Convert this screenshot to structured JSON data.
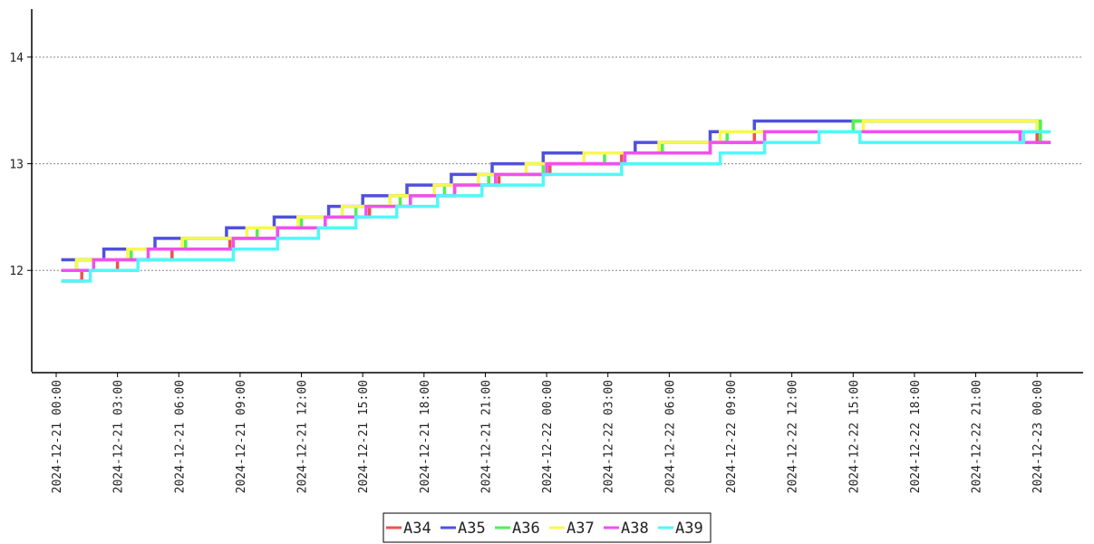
{
  "chart_data": {
    "type": "line",
    "step": true,
    "x_format": "YYYY-MM-DD HH:mm",
    "xlim": [
      "2024-12-21 00:00",
      "2024-12-23 01:30"
    ],
    "ylim": [
      11.05,
      14.45
    ],
    "yticks": [
      12,
      13,
      14
    ],
    "ytick_labels": [
      "12",
      "13",
      "14"
    ],
    "xtick_labels": [
      "2024-12-21 00:00",
      "2024-12-21 03:00",
      "2024-12-21 06:00",
      "2024-12-21 09:00",
      "2024-12-21 12:00",
      "2024-12-21 15:00",
      "2024-12-21 18:00",
      "2024-12-21 21:00",
      "2024-12-22 00:00",
      "2024-12-22 03:00",
      "2024-12-22 06:00",
      "2024-12-22 09:00",
      "2024-12-22 12:00",
      "2024-12-22 15:00",
      "2024-12-22 18:00",
      "2024-12-22 21:00",
      "2024-12-23 00:00"
    ],
    "grid": "horizontal-dotted",
    "legend_position": "bottom-center",
    "series": [
      {
        "name": "A34",
        "color": "#f05050",
        "x": [
          "2024-12-21 00:15",
          "2024-12-21 01:15",
          "2024-12-21 03:00",
          "2024-12-21 05:40",
          "2024-12-21 08:30",
          "2024-12-21 10:50",
          "2024-12-21 13:10",
          "2024-12-21 15:20",
          "2024-12-21 17:20",
          "2024-12-21 19:30",
          "2024-12-21 21:40",
          "2024-12-22 00:10",
          "2024-12-22 03:40",
          "2024-12-22 08:00",
          "2024-12-22 10:10",
          "2024-12-23 00:00",
          "2024-12-23 00:40"
        ],
        "y": [
          11.9,
          12.0,
          12.1,
          12.2,
          12.3,
          12.4,
          12.5,
          12.6,
          12.7,
          12.8,
          12.9,
          13.0,
          13.1,
          13.2,
          13.3,
          13.2,
          13.2
        ]
      },
      {
        "name": "A35",
        "color": "#5050dc",
        "x": [
          "2024-12-21 00:15",
          "2024-12-21 02:20",
          "2024-12-21 04:50",
          "2024-12-21 08:20",
          "2024-12-21 10:40",
          "2024-12-21 13:20",
          "2024-12-21 15:00",
          "2024-12-21 17:10",
          "2024-12-21 19:20",
          "2024-12-21 21:20",
          "2024-12-21 23:50",
          "2024-12-22 04:20",
          "2024-12-22 08:00",
          "2024-12-22 10:10",
          "2024-12-23 00:00",
          "2024-12-23 00:40"
        ],
        "y": [
          12.1,
          12.2,
          12.3,
          12.4,
          12.5,
          12.6,
          12.7,
          12.8,
          12.9,
          13.0,
          13.1,
          13.2,
          13.3,
          13.4,
          13.3,
          13.3
        ]
      },
      {
        "name": "A36",
        "color": "#50f050",
        "x": [
          "2024-12-21 00:15",
          "2024-12-21 01:00",
          "2024-12-21 03:40",
          "2024-12-21 06:20",
          "2024-12-21 09:50",
          "2024-12-21 12:00",
          "2024-12-21 14:40",
          "2024-12-21 16:50",
          "2024-12-21 19:00",
          "2024-12-21 21:10",
          "2024-12-21 23:50",
          "2024-12-22 02:50",
          "2024-12-22 05:40",
          "2024-12-22 08:50",
          "2024-12-22 15:00",
          "2024-12-23 00:10",
          "2024-12-23 00:40"
        ],
        "y": [
          12.0,
          12.1,
          12.2,
          12.3,
          12.4,
          12.5,
          12.6,
          12.7,
          12.8,
          12.9,
          13.0,
          13.1,
          13.2,
          13.3,
          13.4,
          13.2,
          13.2
        ]
      },
      {
        "name": "A37",
        "color": "#f8f850",
        "x": [
          "2024-12-21 00:15",
          "2024-12-21 01:00",
          "2024-12-21 03:30",
          "2024-12-21 06:10",
          "2024-12-21 09:20",
          "2024-12-21 11:50",
          "2024-12-21 14:00",
          "2024-12-21 16:20",
          "2024-12-21 18:30",
          "2024-12-21 20:40",
          "2024-12-21 23:00",
          "2024-12-22 01:50",
          "2024-12-22 05:30",
          "2024-12-22 08:30",
          "2024-12-22 15:30",
          "2024-12-23 00:00",
          "2024-12-23 00:40"
        ],
        "y": [
          12.0,
          12.1,
          12.2,
          12.3,
          12.4,
          12.5,
          12.6,
          12.7,
          12.8,
          12.9,
          13.0,
          13.1,
          13.2,
          13.3,
          13.4,
          13.3,
          13.3
        ]
      },
      {
        "name": "A38",
        "color": "#f050f0",
        "x": [
          "2024-12-21 00:15",
          "2024-12-21 01:50",
          "2024-12-21 04:30",
          "2024-12-21 08:40",
          "2024-12-21 10:50",
          "2024-12-21 13:10",
          "2024-12-21 15:10",
          "2024-12-21 17:20",
          "2024-12-21 19:30",
          "2024-12-21 21:30",
          "2024-12-22 00:00",
          "2024-12-22 03:50",
          "2024-12-22 08:00",
          "2024-12-22 10:40",
          "2024-12-22 23:10",
          "2024-12-23 00:40"
        ],
        "y": [
          12.0,
          12.1,
          12.2,
          12.3,
          12.4,
          12.5,
          12.6,
          12.7,
          12.8,
          12.9,
          13.0,
          13.1,
          13.2,
          13.3,
          13.2,
          13.2
        ]
      },
      {
        "name": "A39",
        "color": "#50f8f8",
        "x": [
          "2024-12-21 00:15",
          "2024-12-21 01:40",
          "2024-12-21 02:20",
          "2024-12-21 04:00",
          "2024-12-21 05:40",
          "2024-12-21 08:40",
          "2024-12-21 10:50",
          "2024-12-21 12:50",
          "2024-12-21 14:40",
          "2024-12-21 16:40",
          "2024-12-21 18:40",
          "2024-12-21 20:50",
          "2024-12-21 23:50",
          "2024-12-22 03:40",
          "2024-12-22 08:30",
          "2024-12-22 10:40",
          "2024-12-22 13:20",
          "2024-12-22 15:20",
          "2024-12-22 23:20",
          "2024-12-23 00:40"
        ],
        "y": [
          11.9,
          12.0,
          12.0,
          12.1,
          12.1,
          12.2,
          12.3,
          12.4,
          12.5,
          12.6,
          12.7,
          12.8,
          12.9,
          13.0,
          13.1,
          13.2,
          13.3,
          13.2,
          13.3,
          13.3
        ]
      }
    ]
  }
}
